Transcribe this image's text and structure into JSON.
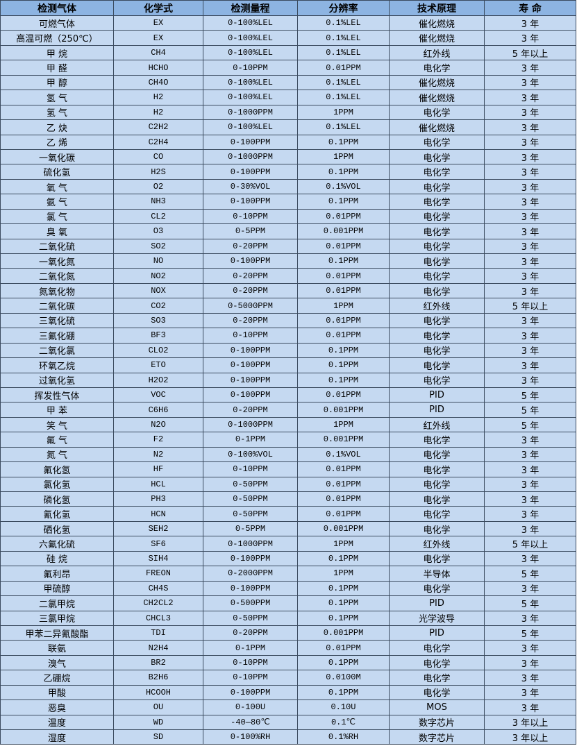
{
  "table": {
    "headers": [
      "检测气体",
      "化学式",
      "检测量程",
      "分辨率",
      "技术原理",
      "寿 命"
    ],
    "rows": [
      [
        "可燃气体",
        "EX",
        "0-100%LEL",
        "0.1%LEL",
        "催化燃烧",
        "3 年"
      ],
      [
        "高温可燃（250℃）",
        "EX",
        "0-100%LEL",
        "0.1%LEL",
        "催化燃烧",
        "3 年"
      ],
      [
        "甲 烷",
        "CH4",
        "0-100%LEL",
        "0.1%LEL",
        "红外线",
        "5 年以上"
      ],
      [
        "甲 醛",
        "HCHO",
        "0-10PPM",
        "0.01PPM",
        "电化学",
        "3 年"
      ],
      [
        "甲 醇",
        "CH4O",
        "0-100%LEL",
        "0.1%LEL",
        "催化燃烧",
        "3 年"
      ],
      [
        "氢 气",
        "H2",
        "0-100%LEL",
        "0.1%LEL",
        "催化燃烧",
        "3 年"
      ],
      [
        "氢 气",
        "H2",
        "0-1000PPM",
        "1PPM",
        "电化学",
        "3 年"
      ],
      [
        "乙 炔",
        "C2H2",
        "0-100%LEL",
        "0.1%LEL",
        "催化燃烧",
        "3 年"
      ],
      [
        "乙 烯",
        "C2H4",
        "0-100PPM",
        "0.1PPM",
        "电化学",
        "3 年"
      ],
      [
        "一氧化碳",
        "CO",
        "0-1000PPM",
        "1PPM",
        "电化学",
        "3 年"
      ],
      [
        "硫化氢",
        "H2S",
        "0-100PPM",
        "0.1PPM",
        "电化学",
        "3 年"
      ],
      [
        "氧 气",
        "O2",
        "0-30%VOL",
        "0.1%VOL",
        "电化学",
        "3 年"
      ],
      [
        "氨 气",
        "NH3",
        "0-100PPM",
        "0.1PPM",
        "电化学",
        "3 年"
      ],
      [
        "氯 气",
        "CL2",
        "0-10PPM",
        "0.01PPM",
        "电化学",
        "3 年"
      ],
      [
        "臭 氧",
        "O3",
        "0-5PPM",
        "0.001PPM",
        "电化学",
        "3 年"
      ],
      [
        "二氧化硫",
        "SO2",
        "0-20PPM",
        "0.01PPM",
        "电化学",
        "3 年"
      ],
      [
        "一氧化氮",
        "NO",
        "0-100PPM",
        "0.1PPM",
        "电化学",
        "3 年"
      ],
      [
        "二氧化氮",
        "NO2",
        "0-20PPM",
        "0.01PPM",
        "电化学",
        "3 年"
      ],
      [
        "氮氧化物",
        "NOX",
        "0-20PPM",
        "0.01PPM",
        "电化学",
        "3 年"
      ],
      [
        "二氧化碳",
        "CO2",
        "0-5000PPM",
        "1PPM",
        "红外线",
        "5 年以上"
      ],
      [
        "三氧化硫",
        "SO3",
        "0-20PPM",
        "0.01PPM",
        "电化学",
        "3 年"
      ],
      [
        "三氟化硼",
        "BF3",
        "0-10PPM",
        "0.01PPM",
        "电化学",
        "3 年"
      ],
      [
        "二氧化氯",
        "CLO2",
        "0-100PPM",
        "0.1PPM",
        "电化学",
        "3 年"
      ],
      [
        "环氧乙烷",
        "ETO",
        "0-100PPM",
        "0.1PPM",
        "电化学",
        "3 年"
      ],
      [
        "过氧化氢",
        "H2O2",
        "0-100PPM",
        "0.1PPM",
        "电化学",
        "3 年"
      ],
      [
        "挥发性气体",
        "VOC",
        "0-100PPM",
        "0.01PPM",
        "PID",
        "5 年"
      ],
      [
        "甲 苯",
        "C6H6",
        "0-20PPM",
        "0.001PPM",
        "PID",
        "5 年"
      ],
      [
        "笑 气",
        "N2O",
        "0-1000PPM",
        "1PPM",
        "红外线",
        "5 年"
      ],
      [
        "氟 气",
        "F2",
        "0-1PPM",
        "0.001PPM",
        "电化学",
        "3 年"
      ],
      [
        "氮 气",
        "N2",
        "0-100%VOL",
        "0.1%VOL",
        "电化学",
        "3 年"
      ],
      [
        "氟化氢",
        "HF",
        "0-10PPM",
        "0.01PPM",
        "电化学",
        "3 年"
      ],
      [
        "氯化氢",
        "HCL",
        "0-50PPM",
        "0.01PPM",
        "电化学",
        "3 年"
      ],
      [
        "磷化氢",
        "PH3",
        "0-50PPM",
        "0.01PPM",
        "电化学",
        "3 年"
      ],
      [
        "氰化氢",
        "HCN",
        "0-50PPM",
        "0.01PPM",
        "电化学",
        "3 年"
      ],
      [
        "硒化氢",
        "SEH2",
        "0-5PPM",
        "0.001PPM",
        "电化学",
        "3 年"
      ],
      [
        "六氟化硫",
        "SF6",
        "0-1000PPM",
        "1PPM",
        "红外线",
        "5 年以上"
      ],
      [
        "硅 烷",
        "SIH4",
        "0-100PPM",
        "0.1PPM",
        "电化学",
        "3 年"
      ],
      [
        "氟利昂",
        "FREON",
        "0-2000PPM",
        "1PPM",
        "半导体",
        "5 年"
      ],
      [
        "甲硫醇",
        "CH4S",
        "0-100PPM",
        "0.1PPM",
        "电化学",
        "3 年"
      ],
      [
        "二氯甲烷",
        "CH2CL2",
        "0-500PPM",
        "0.1PPM",
        "PID",
        "5 年"
      ],
      [
        "三氯甲烷",
        "CHCL3",
        "0-50PPM",
        "0.1PPM",
        "光学波导",
        "3 年"
      ],
      [
        "甲苯二异氰酸酯",
        "TDI",
        "0-20PPM",
        "0.001PPM",
        "PID",
        "5 年"
      ],
      [
        "联氨",
        "N2H4",
        "0-1PPM",
        "0.01PPM",
        "电化学",
        "3 年"
      ],
      [
        "溴气",
        "BR2",
        "0-10PPM",
        "0.1PPM",
        "电化学",
        "3 年"
      ],
      [
        "乙硼烷",
        "B2H6",
        "0-10PPM",
        "0.0100M",
        "电化学",
        "3 年"
      ],
      [
        "甲酸",
        "HCOOH",
        "0-100PPM",
        "0.1PPM",
        "电化学",
        "3 年"
      ],
      [
        "恶臭",
        "OU",
        "0-100U",
        "0.10U",
        "MOS",
        "3 年"
      ],
      [
        "温度",
        "WD",
        "-40—80℃",
        "0.1℃",
        "数字芯片",
        "3 年以上"
      ],
      [
        "湿度",
        "SD",
        "0-100%RH",
        "0.1%RH",
        "数字芯片",
        "3 年以上"
      ]
    ]
  },
  "colors": {
    "header_bg": "#8db4e2",
    "row_bg": "#c5d9f1",
    "border": "#3a4a5e"
  }
}
